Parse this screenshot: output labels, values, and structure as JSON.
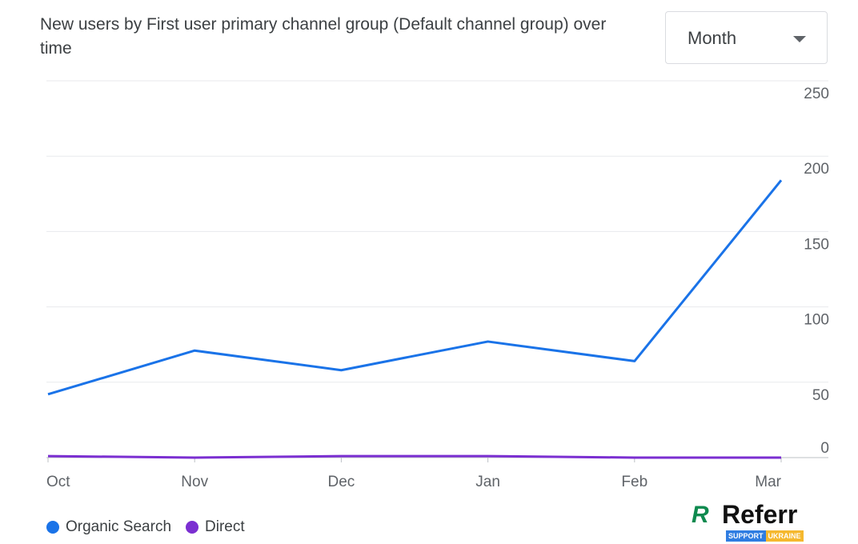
{
  "chart_data": {
    "type": "line",
    "title": "New users by First user primary channel group (Default channel group) over time",
    "categories": [
      "Oct",
      "Nov",
      "Dec",
      "Jan",
      "Feb",
      "Mar"
    ],
    "series": [
      {
        "name": "Organic Search",
        "color": "#1a73e8",
        "values": [
          42,
          71,
          58,
          77,
          64,
          184
        ]
      },
      {
        "name": "Direct",
        "color": "#7b2fd1",
        "values": [
          1,
          0,
          1,
          1,
          0,
          0
        ]
      }
    ],
    "yticks": [
      0,
      50,
      100,
      150,
      200,
      250
    ],
    "ylim": [
      0,
      250
    ],
    "grid": true,
    "legend": "bottom-left",
    "xlabel": "",
    "ylabel": ""
  },
  "dropdown": {
    "label": "Month"
  },
  "logo": {
    "mark": "R",
    "name": "Referr",
    "tag1": "SUPPORT",
    "tag2": "UKRAINE"
  }
}
